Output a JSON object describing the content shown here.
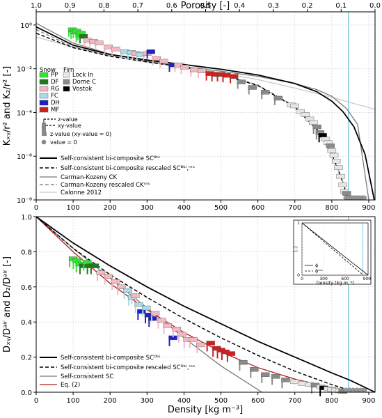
{
  "colors": {
    "PP": "#2ee62e",
    "DF": "#1f7a1f",
    "RG": "#f4b8c2",
    "FC": "#a9dcea",
    "DH": "#1a22c8",
    "MF": "#d11f1f",
    "LockIn": "#e6e6e6",
    "DomeC": "#8a8a8a",
    "Vostok": "#000000",
    "grid": "#cccccc",
    "ice_line": "#7ec8e3",
    "eq2": "#b01a1a",
    "ck": "#777777",
    "calonne": "#c8c8c8"
  },
  "chart_data": [
    {
      "type": "line",
      "title": "",
      "xlabel": "",
      "ylabel": "Kₓᵧ/r² and K₂/r² [-]",
      "top_axis_label": "Porosity [-]",
      "top_ticks": [
        "1.0",
        "0.9",
        "0.8",
        "0.7",
        "0.6",
        "0.5",
        "0.4",
        "0.3",
        "0.2",
        "0.1",
        "0.0"
      ],
      "xlim": [
        0,
        917
      ],
      "ylim": [
        1e-08,
        4
      ],
      "yscale": "log",
      "xticks": [
        "0",
        "100",
        "200",
        "300",
        "400",
        "500",
        "600",
        "700",
        "800",
        "900"
      ],
      "yticks": [
        "10⁻⁸",
        "10⁻⁶",
        "10⁻⁴",
        "10⁻²",
        "10⁰"
      ],
      "ice_line_x": 845,
      "series": [
        {
          "name": "Self-consistent bi-composite SCᴮᵇⁱ",
          "style": "solid-black-thick",
          "x": [
            0,
            100,
            200,
            300,
            400,
            500,
            600,
            700,
            760,
            800,
            830,
            860,
            890,
            915
          ],
          "y": [
            0.82,
            0.12,
            0.045,
            0.025,
            0.0155,
            0.0095,
            0.0052,
            0.0021,
            0.00088,
            0.00033,
            0.00011,
            2.2e-05,
            1.2e-06,
            1e-08
          ]
        },
        {
          "name": "Self-consistent bi-composite rescaled SCᴮᵇⁱ,ʳᵉˢ",
          "style": "dashed-black",
          "x": [
            0,
            100,
            200,
            300,
            400,
            500,
            600,
            700,
            760,
            800,
            825,
            840,
            848
          ],
          "y": [
            0.42,
            0.092,
            0.037,
            0.0205,
            0.0118,
            0.0055,
            0.0017,
            0.000175,
            1.65e-05,
            1.2e-06,
            1.1e-07,
            1.8e-08,
            1e-08
          ]
        },
        {
          "name": "Carman-Kozeny CK",
          "style": "solid-grey",
          "x": [
            0,
            100,
            200,
            300,
            400,
            500,
            600,
            700,
            760,
            800,
            840,
            870,
            900
          ],
          "y": [
            1.2,
            0.15,
            0.047,
            0.022,
            0.0125,
            0.0077,
            0.0045,
            0.0021,
            0.0011,
            0.00055,
            0.00015,
            2.8e-05,
            1e-08
          ]
        },
        {
          "name": "Carman-Kozeny rescaled CKʳᵉˢ",
          "style": "dashed-grey",
          "x": [
            0,
            100,
            200,
            300,
            400,
            500,
            600,
            700,
            760,
            800,
            825,
            840,
            848
          ],
          "y": [
            0.62,
            0.1,
            0.039,
            0.021,
            0.0121,
            0.0058,
            0.0018,
            0.00019,
            1.8e-05,
            1.3e-06,
            1.2e-07,
            2e-08,
            1e-08
          ]
        },
        {
          "name": "Calonne 2012",
          "style": "solid-lightgrey",
          "x": [
            0,
            100,
            200,
            300,
            400,
            500,
            600,
            700,
            800,
            917
          ],
          "y": [
            0.28,
            0.098,
            0.045,
            0.023,
            0.0122,
            0.0065,
            0.0032,
            0.0013,
            0.00049,
            0.00014
          ]
        }
      ],
      "points": [
        {
          "x": 98,
          "y": 0.6,
          "cls": "PP",
          "err": true
        },
        {
          "x": 104,
          "y": 0.48,
          "cls": "PP",
          "err": true
        },
        {
          "x": 110,
          "y": 0.52,
          "cls": "PP",
          "err": true
        },
        {
          "x": 118,
          "y": 0.35,
          "cls": "PP",
          "err": true
        },
        {
          "x": 122,
          "y": 0.42,
          "cls": "PP",
          "err": true
        },
        {
          "x": 128,
          "y": 0.3,
          "cls": "DF",
          "err": true
        },
        {
          "x": 140,
          "y": 0.2,
          "cls": "RG",
          "err": true
        },
        {
          "x": 155,
          "y": 0.18,
          "cls": "RG",
          "err": true
        },
        {
          "x": 170,
          "y": 0.15,
          "cls": "RG",
          "err": true
        },
        {
          "x": 195,
          "y": 0.1,
          "cls": "RG",
          "err": true
        },
        {
          "x": 215,
          "y": 0.08,
          "cls": "RG",
          "err": true
        },
        {
          "x": 240,
          "y": 0.06,
          "cls": "FC",
          "err": true
        },
        {
          "x": 258,
          "y": 0.055,
          "cls": "FC",
          "err": true
        },
        {
          "x": 270,
          "y": 0.05,
          "cls": "RG",
          "err": true
        },
        {
          "x": 282,
          "y": 0.045,
          "cls": "FC",
          "err": true
        },
        {
          "x": 300,
          "y": 0.05,
          "cls": "RG",
          "err": true
        },
        {
          "x": 310,
          "y": 0.06,
          "cls": "DH",
          "err": true
        },
        {
          "x": 325,
          "y": 0.03,
          "cls": "RG",
          "err": true
        },
        {
          "x": 345,
          "y": 0.022,
          "cls": "RG",
          "err": true
        },
        {
          "x": 370,
          "y": 0.015,
          "cls": "DH",
          "err": true
        },
        {
          "x": 385,
          "y": 0.015,
          "cls": "RG",
          "err": true
        },
        {
          "x": 402,
          "y": 0.012,
          "cls": "RG",
          "err": true
        },
        {
          "x": 428,
          "y": 0.009,
          "cls": "RG",
          "err": true
        },
        {
          "x": 448,
          "y": 0.008,
          "cls": "RG",
          "err": true
        },
        {
          "x": 470,
          "y": 0.006,
          "cls": "MF",
          "err": true
        },
        {
          "x": 485,
          "y": 0.0055,
          "cls": "MF",
          "err": true
        },
        {
          "x": 500,
          "y": 0.0055,
          "cls": "MF",
          "err": true
        },
        {
          "x": 515,
          "y": 0.005,
          "cls": "MF",
          "err": true
        },
        {
          "x": 535,
          "y": 0.0045,
          "cls": "MF",
          "err": true
        },
        {
          "x": 555,
          "y": 0.0025,
          "cls": "DomeC",
          "err": true
        },
        {
          "x": 585,
          "y": 0.0014,
          "cls": "DomeC",
          "err": true
        },
        {
          "x": 620,
          "y": 0.00085,
          "cls": "DomeC",
          "err": true
        },
        {
          "x": 655,
          "y": 0.00045,
          "cls": "DomeC",
          "err": true
        },
        {
          "x": 690,
          "y": 0.00022,
          "cls": "LockIn",
          "err": false
        },
        {
          "x": 700,
          "y": 0.0002,
          "cls": "LockIn",
          "err": false
        },
        {
          "x": 715,
          "y": 0.00011,
          "cls": "LockIn",
          "err": false
        },
        {
          "x": 728,
          "y": 8e-05,
          "cls": "LockIn",
          "err": false
        },
        {
          "x": 740,
          "y": 5e-05,
          "cls": "LockIn",
          "err": false
        },
        {
          "x": 750,
          "y": 3.5e-05,
          "cls": "LockIn",
          "err": false
        },
        {
          "x": 760,
          "y": 2.2e-05,
          "cls": "DomeC",
          "err": true
        },
        {
          "x": 768,
          "y": 1.2e-05,
          "cls": "DomeC",
          "err": true
        },
        {
          "x": 775,
          "y": 9e-06,
          "cls": "Vostok",
          "err": true
        },
        {
          "x": 782,
          "y": 6e-06,
          "cls": "LockIn",
          "err": false
        },
        {
          "x": 790,
          "y": 4.2e-06,
          "cls": "LockIn",
          "err": false
        },
        {
          "x": 796,
          "y": 3e-06,
          "cls": "DomeC",
          "err": false
        },
        {
          "x": 800,
          "y": 1.8e-06,
          "cls": "LockIn",
          "err": false
        },
        {
          "x": 806,
          "y": 1.1e-06,
          "cls": "LockIn",
          "err": false
        },
        {
          "x": 812,
          "y": 6e-07,
          "cls": "LockIn",
          "err": false
        },
        {
          "x": 818,
          "y": 3e-07,
          "cls": "LockIn",
          "err": false
        },
        {
          "x": 824,
          "y": 1.2e-07,
          "cls": "LockIn",
          "err": false
        },
        {
          "x": 830,
          "y": 5e-08,
          "cls": "LockIn",
          "err": false
        },
        {
          "x": 835,
          "y": 2.5e-08,
          "cls": "LockIn",
          "err": false
        },
        {
          "x": 840,
          "y": 2e-08,
          "cls": "DomeC",
          "err": false
        }
      ],
      "zero_points_x": [
        838,
        845,
        852,
        858,
        864,
        870,
        876,
        882,
        888
      ],
      "legend_snow": {
        "title": "Snow",
        "items": [
          "PP",
          "DF",
          "RG",
          "FC",
          "DH",
          "MF"
        ]
      },
      "legend_firn": {
        "title": "Firn",
        "items": [
          "Lock In",
          "Dome C",
          "Vostok"
        ]
      },
      "legend_markers": [
        "z-value",
        "xy-value",
        "z-value (xy-value = 0)",
        "value = 0"
      ]
    },
    {
      "type": "line",
      "title": "",
      "xlabel": "Density [kg m⁻³]",
      "ylabel": "Dₓᵧ/Dᵃⁱʳ and D₂/Dᵃⁱʳ [-]",
      "xlim": [
        0,
        917
      ],
      "ylim": [
        0,
        1.0
      ],
      "xticks": [
        "0",
        "100",
        "200",
        "300",
        "400",
        "500",
        "600",
        "700",
        "800",
        "900"
      ],
      "yticks": [
        "0.0",
        "0.2",
        "0.4",
        "0.6",
        "0.8",
        "1.0"
      ],
      "ice_line_x": 845,
      "series": [
        {
          "name": "Self-consistent bi-composite SCᴰᵇⁱ",
          "style": "solid-black-thick",
          "x": [
            0,
            100,
            200,
            300,
            400,
            500,
            600,
            700,
            800,
            850,
            917
          ],
          "y": [
            1.0,
            0.85,
            0.72,
            0.6,
            0.49,
            0.39,
            0.29,
            0.2,
            0.11,
            0.068,
            0.0
          ]
        },
        {
          "name": "Self-consistent bi-composite rescaled SCᴰᵇⁱ,ʳᵉˢ",
          "style": "dashed-black",
          "x": [
            0,
            100,
            200,
            300,
            400,
            500,
            600,
            700,
            800,
            850,
            880
          ],
          "y": [
            1.0,
            0.82,
            0.67,
            0.54,
            0.42,
            0.31,
            0.21,
            0.12,
            0.043,
            0.01,
            0.0
          ]
        },
        {
          "name": "Self-consistent SC",
          "style": "solid-grey",
          "x": [
            0,
            100,
            200,
            300,
            400,
            500,
            611
          ],
          "y": [
            1.0,
            0.82,
            0.65,
            0.48,
            0.31,
            0.15,
            0.0
          ]
        },
        {
          "name": "Eq. (2)",
          "style": "solid-red",
          "x": [
            0,
            100,
            200,
            300,
            400,
            500,
            600,
            700,
            800,
            860,
            900
          ],
          "y": [
            1.0,
            0.8,
            0.62,
            0.47,
            0.34,
            0.23,
            0.14,
            0.075,
            0.025,
            0.003,
            0.0
          ]
        }
      ],
      "points": [
        {
          "x": 100,
          "y": 0.76,
          "cls": "PP",
          "err": true
        },
        {
          "x": 110,
          "y": 0.75,
          "cls": "PP",
          "err": true
        },
        {
          "x": 118,
          "y": 0.73,
          "cls": "PP",
          "err": true
        },
        {
          "x": 128,
          "y": 0.72,
          "cls": "DF",
          "err": true
        },
        {
          "x": 138,
          "y": 0.74,
          "cls": "PP",
          "err": true
        },
        {
          "x": 148,
          "y": 0.72,
          "cls": "DF",
          "err": true
        },
        {
          "x": 158,
          "y": 0.72,
          "cls": "DF",
          "err": true
        },
        {
          "x": 175,
          "y": 0.68,
          "cls": "RG",
          "err": true
        },
        {
          "x": 195,
          "y": 0.66,
          "cls": "RG",
          "err": true
        },
        {
          "x": 215,
          "y": 0.63,
          "cls": "RG",
          "err": true
        },
        {
          "x": 230,
          "y": 0.6,
          "cls": "RG",
          "err": true
        },
        {
          "x": 248,
          "y": 0.58,
          "cls": "FC",
          "err": true
        },
        {
          "x": 260,
          "y": 0.54,
          "cls": "FC",
          "err": true
        },
        {
          "x": 268,
          "y": 0.55,
          "cls": "RG",
          "err": true
        },
        {
          "x": 278,
          "y": 0.5,
          "cls": "FC",
          "err": true
        },
        {
          "x": 285,
          "y": 0.46,
          "cls": "DH",
          "err": true
        },
        {
          "x": 298,
          "y": 0.48,
          "cls": "FC",
          "err": true
        },
        {
          "x": 305,
          "y": 0.44,
          "cls": "DH",
          "err": true
        },
        {
          "x": 315,
          "y": 0.42,
          "cls": "DH",
          "err": true
        },
        {
          "x": 322,
          "y": 0.45,
          "cls": "RG",
          "err": true
        },
        {
          "x": 340,
          "y": 0.41,
          "cls": "RG",
          "err": true
        },
        {
          "x": 355,
          "y": 0.38,
          "cls": "RG",
          "err": true
        },
        {
          "x": 370,
          "y": 0.31,
          "cls": "DH",
          "err": true
        },
        {
          "x": 380,
          "y": 0.36,
          "cls": "RG",
          "err": true
        },
        {
          "x": 395,
          "y": 0.33,
          "cls": "RG",
          "err": true
        },
        {
          "x": 410,
          "y": 0.3,
          "cls": "RG",
          "err": true
        },
        {
          "x": 425,
          "y": 0.3,
          "cls": "RG",
          "err": true
        },
        {
          "x": 445,
          "y": 0.27,
          "cls": "RG",
          "err": true
        },
        {
          "x": 472,
          "y": 0.28,
          "cls": "MF",
          "err": true
        },
        {
          "x": 488,
          "y": 0.25,
          "cls": "MF",
          "err": true
        },
        {
          "x": 500,
          "y": 0.24,
          "cls": "MF",
          "err": true
        },
        {
          "x": 512,
          "y": 0.23,
          "cls": "MF",
          "err": true
        },
        {
          "x": 527,
          "y": 0.22,
          "cls": "MF",
          "err": true
        },
        {
          "x": 560,
          "y": 0.17,
          "cls": "DomeC",
          "err": true
        },
        {
          "x": 590,
          "y": 0.13,
          "cls": "DomeC",
          "err": true
        },
        {
          "x": 620,
          "y": 0.1,
          "cls": "DomeC",
          "err": true
        },
        {
          "x": 648,
          "y": 0.09,
          "cls": "DomeC",
          "err": true
        },
        {
          "x": 675,
          "y": 0.07,
          "cls": "DomeC",
          "err": true
        },
        {
          "x": 700,
          "y": 0.06,
          "cls": "LockIn",
          "err": false
        },
        {
          "x": 720,
          "y": 0.05,
          "cls": "LockIn",
          "err": false
        },
        {
          "x": 740,
          "y": 0.045,
          "cls": "LockIn",
          "err": false
        },
        {
          "x": 755,
          "y": 0.04,
          "cls": "DomeC",
          "err": true
        },
        {
          "x": 770,
          "y": 0.03,
          "cls": "LockIn",
          "err": false
        },
        {
          "x": 778,
          "y": 0.025,
          "cls": "Vostok",
          "err": true
        },
        {
          "x": 790,
          "y": 0.02,
          "cls": "LockIn",
          "err": false
        },
        {
          "x": 800,
          "y": 0.015,
          "cls": "LockIn",
          "err": false
        },
        {
          "x": 810,
          "y": 0.012,
          "cls": "LockIn",
          "err": false
        },
        {
          "x": 820,
          "y": 0.008,
          "cls": "LockIn",
          "err": false
        },
        {
          "x": 830,
          "y": 0.005,
          "cls": "DomeC",
          "err": false
        }
      ],
      "zero_points_x": [
        838,
        848,
        858,
        868,
        878,
        888
      ],
      "inset": {
        "xlabel": "Density [kg m⁻³]",
        "ylabel": "[-]",
        "xticks": [
          "0",
          "300",
          "600",
          "900"
        ],
        "yticks": [
          "0",
          "1"
        ],
        "xlim": [
          0,
          917
        ],
        "ylim": [
          0,
          1
        ],
        "legend": [
          "ϕ",
          "ϕʳᵉˢ"
        ],
        "ice_line_x": 845,
        "series": [
          {
            "name": "ϕ",
            "style": "solid",
            "x": [
              0,
              917
            ],
            "y": [
              1,
              0
            ]
          },
          {
            "name": "ϕʳᵉˢ",
            "style": "dashed",
            "x": [
              0,
              850
            ],
            "y": [
              1,
              0
            ]
          }
        ]
      }
    }
  ]
}
